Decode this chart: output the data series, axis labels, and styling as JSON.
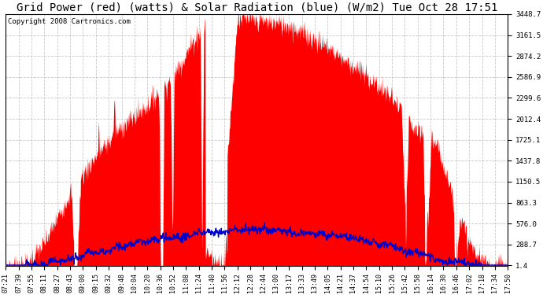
{
  "title": "Grid Power (red) (watts) & Solar Radiation (blue) (W/m2) Tue Oct 28 17:51",
  "copyright": "Copyright 2008 Cartronics.com",
  "y_ticks": [
    1.4,
    288.7,
    576.0,
    863.3,
    1150.5,
    1437.8,
    1725.1,
    2012.4,
    2299.6,
    2586.9,
    2874.2,
    3161.5,
    3448.7
  ],
  "x_labels": [
    "07:21",
    "07:39",
    "07:55",
    "08:11",
    "08:27",
    "08:43",
    "09:00",
    "09:15",
    "09:32",
    "09:48",
    "10:04",
    "10:20",
    "10:36",
    "10:52",
    "11:08",
    "11:24",
    "11:40",
    "11:56",
    "12:12",
    "12:28",
    "12:44",
    "13:00",
    "13:17",
    "13:33",
    "13:49",
    "14:05",
    "14:21",
    "14:37",
    "14:54",
    "15:10",
    "15:26",
    "15:42",
    "15:58",
    "16:14",
    "16:30",
    "16:46",
    "17:02",
    "17:18",
    "17:34",
    "17:50"
  ],
  "ymax": 3448.7,
  "ymin": 0,
  "background_color": "#ffffff",
  "grid_color": "#c8c8c8",
  "fill_color": "#ff0000",
  "line_color": "#0000cc",
  "title_fontsize": 10,
  "copyright_fontsize": 6.5,
  "tick_fontsize": 6.5,
  "xlabel_fontsize": 6
}
